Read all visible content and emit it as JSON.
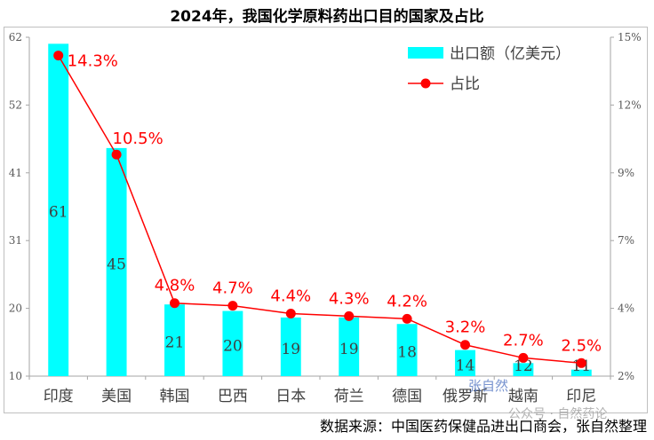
{
  "chart_data": {
    "type": "bar+line",
    "title": "2024年，我国化学原料药出口目的国家及占比",
    "categories": [
      "印度",
      "美国",
      "韩国",
      "巴西",
      "日本",
      "荷兰",
      "德国",
      "俄罗斯",
      "越南",
      "印尼"
    ],
    "series": [
      {
        "name": "出口额（亿美元）",
        "type": "bar",
        "axis": "left",
        "values": [
          61,
          45,
          21,
          20,
          19,
          19,
          18,
          14,
          12,
          11
        ],
        "color": "#00ffff"
      },
      {
        "name": "占比",
        "type": "line",
        "axis": "right",
        "values": [
          14.3,
          10.5,
          4.8,
          4.7,
          4.4,
          4.3,
          4.2,
          3.2,
          2.7,
          2.5
        ],
        "labels": [
          "14.3%",
          "10.5%",
          "4.8%",
          "4.7%",
          "4.4%",
          "4.3%",
          "4.2%",
          "3.2%",
          "2.7%",
          "2.5%"
        ],
        "color": "#ff0000"
      }
    ],
    "y_left": {
      "min": 10,
      "max": 62,
      "ticks": [
        10,
        20,
        31,
        41,
        52,
        62
      ]
    },
    "y_right": {
      "min": 2,
      "max": 15,
      "ticks": [
        "2%",
        "4%",
        "7%",
        "9%",
        "12%",
        "15%"
      ]
    },
    "legend_position": "top-right"
  },
  "source": "数据来源：中国医药保健品进出口商会，张自然整理",
  "watermarks": [
    "张自然",
    "公众号 · 自然药论"
  ]
}
